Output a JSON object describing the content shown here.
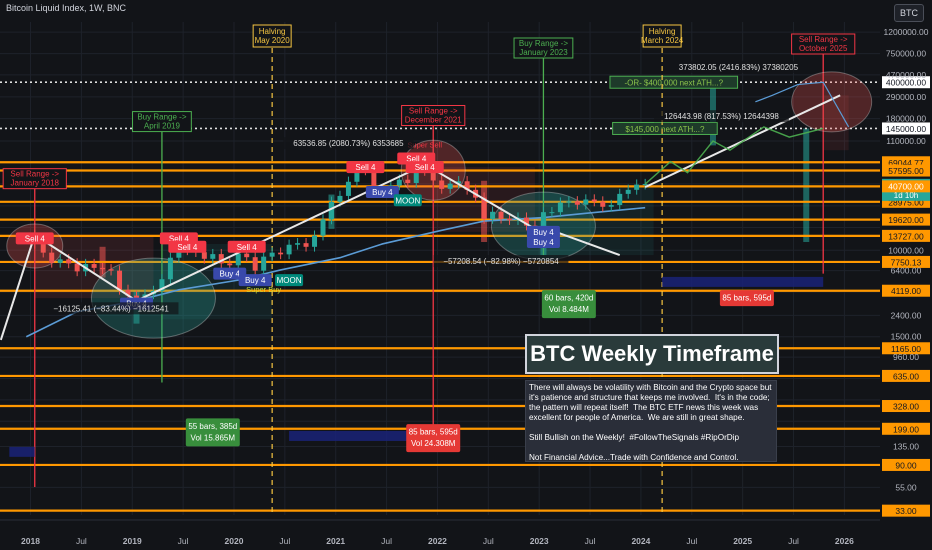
{
  "title": "Bitcoin Liquid Index, 1W, BNC",
  "symbol_button": "BTC",
  "headline": "BTC Weekly Timeframe",
  "note_text": "There will always be volatility with Bitcoin and the Crypto space but it's patience and structure that keeps me involved.  It's in the code; the pattern will repeat itself!  The BTC ETF news this week was excellent for people of America.  We are still in great shape.\n\nStill Bullish on the Weekly!  #FollowTheSignals #RipOrDip\n\nNot Financial Advice...Trade with Confidence and Control.",
  "colors": {
    "background": "#121418",
    "orange_line": "#ff9800",
    "bull_candle": "#26a69a",
    "bear_candle": "#ef5350",
    "ma_line": "#5b9bd5",
    "sell_label": "#f23645",
    "buy_label": "#3949ab",
    "green_label": "#4caf50"
  },
  "chart_data": {
    "type": "candlestick",
    "price_scale": "log",
    "x_ticks": [
      "2018",
      "Jul",
      "2019",
      "Jul",
      "2020",
      "Jul",
      "2021",
      "Jul",
      "2022",
      "Jul",
      "2023",
      "Jul",
      "2024",
      "Jul",
      "2025",
      "Jul",
      "2026"
    ],
    "y_ticks": [
      1200000,
      750000,
      470000,
      290000,
      180000,
      110000,
      69000,
      43000,
      26500,
      16500,
      10000,
      6400,
      4000,
      2400,
      1500,
      960,
      600,
      375,
      235,
      135,
      55
    ],
    "y_tick_labels": [
      "1200000.00",
      "750000.00",
      "470000.00",
      "290000.00",
      "180000.00",
      "110000.00",
      "",
      "",
      "",
      "",
      "10000.00",
      "6400.00",
      "",
      "2400.00",
      "1500.00",
      "960.00",
      "",
      "",
      "",
      "135.00",
      "55.00"
    ],
    "horizontal_levels": [
      69044.77,
      57595.0,
      40700.0,
      28975.0,
      19620.0,
      13727.0,
      7750.13,
      4119.0,
      1165.0,
      635.0,
      328.0,
      199.0,
      90.0,
      33.0
    ],
    "highlighted_levels": [
      {
        "value": 400000.0,
        "label": "400000.00",
        "annotation": "-OR- $400,000 next ATH...?"
      },
      {
        "value": 145000.0,
        "label": "145000.00",
        "annotation": "$145,000 next ATH...?"
      }
    ],
    "price_axis_badges": [
      {
        "text": "42802.02",
        "sub": "1d 10h",
        "color": "#26a69a"
      },
      {
        "text": "40700.00",
        "color": "#ff9800"
      }
    ],
    "weekly_closes": [
      {
        "date": "2017-12",
        "close": 14000
      },
      {
        "date": "2018-01",
        "close": 11500
      },
      {
        "date": "2018-02",
        "close": 9500
      },
      {
        "date": "2018-03",
        "close": 7600
      },
      {
        "date": "2018-04",
        "close": 8200
      },
      {
        "date": "2018-05",
        "close": 7500
      },
      {
        "date": "2018-06",
        "close": 6300
      },
      {
        "date": "2018-07",
        "close": 7400
      },
      {
        "date": "2018-08",
        "close": 6800
      },
      {
        "date": "2018-09",
        "close": 6600
      },
      {
        "date": "2018-10",
        "close": 6400
      },
      {
        "date": "2018-11",
        "close": 4200
      },
      {
        "date": "2018-12",
        "close": 3700
      },
      {
        "date": "2019-01",
        "close": 3500
      },
      {
        "date": "2019-02",
        "close": 3800
      },
      {
        "date": "2019-03",
        "close": 4100
      },
      {
        "date": "2019-04",
        "close": 5300
      },
      {
        "date": "2019-05",
        "close": 8500
      },
      {
        "date": "2019-06",
        "close": 11000
      },
      {
        "date": "2019-07",
        "close": 10000
      },
      {
        "date": "2019-08",
        "close": 9600
      },
      {
        "date": "2019-09",
        "close": 8300
      },
      {
        "date": "2019-10",
        "close": 9200
      },
      {
        "date": "2019-11",
        "close": 7500
      },
      {
        "date": "2019-12",
        "close": 7200
      },
      {
        "date": "2020-01",
        "close": 9300
      },
      {
        "date": "2020-02",
        "close": 8600
      },
      {
        "date": "2020-03",
        "close": 6400
      },
      {
        "date": "2020-04",
        "close": 8700
      },
      {
        "date": "2020-05",
        "close": 9500
      },
      {
        "date": "2020-06",
        "close": 9150
      },
      {
        "date": "2020-07",
        "close": 11300
      },
      {
        "date": "2020-08",
        "close": 11700
      },
      {
        "date": "2020-09",
        "close": 10800
      },
      {
        "date": "2020-10",
        "close": 13800
      },
      {
        "date": "2020-11",
        "close": 19700
      },
      {
        "date": "2020-12",
        "close": 29000
      },
      {
        "date": "2021-01",
        "close": 33000
      },
      {
        "date": "2021-02",
        "close": 45000
      },
      {
        "date": "2021-03",
        "close": 58800
      },
      {
        "date": "2021-04",
        "close": 57700
      },
      {
        "date": "2021-05",
        "close": 37300
      },
      {
        "date": "2021-06",
        "close": 35000
      },
      {
        "date": "2021-07",
        "close": 41500
      },
      {
        "date": "2021-08",
        "close": 47100
      },
      {
        "date": "2021-09",
        "close": 43800
      },
      {
        "date": "2021-10",
        "close": 61300
      },
      {
        "date": "2021-11",
        "close": 57000
      },
      {
        "date": "2021-12",
        "close": 46300
      },
      {
        "date": "2022-01",
        "close": 38500
      },
      {
        "date": "2022-02",
        "close": 43200
      },
      {
        "date": "2022-03",
        "close": 45500
      },
      {
        "date": "2022-04",
        "close": 37700
      },
      {
        "date": "2022-05",
        "close": 31800
      },
      {
        "date": "2022-06",
        "close": 19900
      },
      {
        "date": "2022-07",
        "close": 23300
      },
      {
        "date": "2022-08",
        "close": 20000
      },
      {
        "date": "2022-09",
        "close": 19400
      },
      {
        "date": "2022-10",
        "close": 20500
      },
      {
        "date": "2022-11",
        "close": 17200
      },
      {
        "date": "2022-12",
        "close": 16500
      },
      {
        "date": "2023-01",
        "close": 23100
      },
      {
        "date": "2023-02",
        "close": 23100
      },
      {
        "date": "2023-03",
        "close": 28500
      },
      {
        "date": "2023-04",
        "close": 29300
      },
      {
        "date": "2023-05",
        "close": 27200
      },
      {
        "date": "2023-06",
        "close": 30500
      },
      {
        "date": "2023-07",
        "close": 29200
      },
      {
        "date": "2023-08",
        "close": 26000
      },
      {
        "date": "2023-09",
        "close": 27000
      },
      {
        "date": "2023-10",
        "close": 34500
      },
      {
        "date": "2023-11",
        "close": 37700
      },
      {
        "date": "2023-12",
        "close": 42300
      },
      {
        "date": "2024-01",
        "close": 42802
      }
    ],
    "projection_path": [
      {
        "date": "2024-01",
        "close": 42802
      },
      {
        "date": "2024-04",
        "close": 70000
      },
      {
        "date": "2024-06",
        "close": 55000
      },
      {
        "date": "2024-09",
        "close": 110000
      },
      {
        "date": "2024-11",
        "close": 90000
      },
      {
        "date": "2025-03",
        "close": 150000
      },
      {
        "date": "2025-06",
        "close": 120000
      },
      {
        "date": "2025-10",
        "close": 145000
      }
    ],
    "projection_path_high": [
      {
        "date": "2025-02",
        "close": 260000
      },
      {
        "date": "2025-04",
        "close": 300000
      },
      {
        "date": "2025-07",
        "close": 380000
      },
      {
        "date": "2025-10",
        "close": 400000
      },
      {
        "date": "2026-01",
        "close": 150000
      }
    ],
    "moving_average": [
      {
        "date": "2017-12",
        "close": 1500
      },
      {
        "date": "2018-06",
        "close": 2600
      },
      {
        "date": "2019-01",
        "close": 3300
      },
      {
        "date": "2019-06",
        "close": 4200
      },
      {
        "date": "2020-01",
        "close": 5200
      },
      {
        "date": "2020-06",
        "close": 6500
      },
      {
        "date": "2021-01",
        "close": 8500
      },
      {
        "date": "2021-06",
        "close": 11500
      },
      {
        "date": "2022-01",
        "close": 15500
      },
      {
        "date": "2022-06",
        "close": 19000
      },
      {
        "date": "2023-01",
        "close": 20500
      },
      {
        "date": "2023-06",
        "close": 22500
      },
      {
        "date": "2024-01",
        "close": 25500
      }
    ],
    "halvings": [
      {
        "date": "2020-05",
        "label": "Halving\nMay 2020"
      },
      {
        "date": "2024-03",
        "label": "Halving\nMarch 2024"
      }
    ],
    "range_markers": [
      {
        "date": "2018-01",
        "label": "Sell Range ->\nJanuary 2018",
        "kind": "sell"
      },
      {
        "date": "2019-04",
        "label": "Buy Range ->\nApril 2019",
        "kind": "buy"
      },
      {
        "date": "2021-12",
        "label": "Sell Range ->\nDecember 2021",
        "kind": "sell"
      },
      {
        "date": "2023-01",
        "label": "Buy Range ->\nJanuary 2023",
        "kind": "buy"
      },
      {
        "date": "2025-10",
        "label": "Sell Range ->\nOctober 2025",
        "kind": "sell"
      }
    ],
    "signal_labels": [
      {
        "text": "Sell 4",
        "kind": "sell",
        "date": "2018-01",
        "price": 13000
      },
      {
        "text": "Sell 4",
        "kind": "sell",
        "date": "2019-06",
        "price": 13000
      },
      {
        "text": "Sell 4",
        "kind": "sell",
        "date": "2019-07",
        "price": 10800
      },
      {
        "text": "Sell 4",
        "kind": "sell",
        "date": "2020-02",
        "price": 10800
      },
      {
        "text": "Sell 4",
        "kind": "sell",
        "date": "2021-04",
        "price": 62000
      },
      {
        "text": "Super Sell",
        "kind": "sell-text",
        "date": "2021-11",
        "price": 95000
      },
      {
        "text": "Sell 4",
        "kind": "sell",
        "date": "2021-10",
        "price": 75000
      },
      {
        "text": "Sell 4",
        "kind": "sell",
        "date": "2021-11",
        "price": 62000
      },
      {
        "text": "Buy 4",
        "kind": "buy",
        "date": "2019-01",
        "price": 3100
      },
      {
        "text": "Buy 4",
        "kind": "buy",
        "date": "2019-12",
        "price": 6000
      },
      {
        "text": "Buy 4",
        "kind": "buy",
        "date": "2020-03",
        "price": 5200
      },
      {
        "text": "MOON",
        "kind": "moon",
        "date": "2020-07",
        "price": 5200
      },
      {
        "text": "Super Buy",
        "kind": "buy-text",
        "date": "2020-04",
        "price": 4000
      },
      {
        "text": "Buy 4",
        "kind": "buy",
        "date": "2021-06",
        "price": 36000
      },
      {
        "text": "MOON",
        "kind": "moon",
        "date": "2021-09",
        "price": 30000
      },
      {
        "text": "Buy 4",
        "kind": "buy",
        "date": "2023-01",
        "price": 15000
      },
      {
        "text": "Buy 4",
        "kind": "buy-small",
        "date": "2023-01",
        "price": 12000
      }
    ],
    "measurements": [
      {
        "text": "63536.85 (2080.73%) 6353685",
        "date": "2021-02",
        "price": 105000
      },
      {
        "text": "−16125.41 (−83.44%) −1612541",
        "date": "2018-10",
        "price": 2800
      },
      {
        "text": "−57208.54 (−82.98%) −5720854",
        "date": "2022-08",
        "price": 7900
      },
      {
        "text": "126443.98 (817.53%) 12644398",
        "date": "2024-10",
        "price": 190000
      },
      {
        "text": "373802.05 (2416.83%) 37380205",
        "date": "2024-12",
        "price": 560000
      }
    ],
    "bar_boxes": [
      {
        "title": "55 bars, 385d",
        "sub": "Vol 15.865M",
        "color": "#388e3c",
        "date": "2019-10",
        "price": 210
      },
      {
        "title": "85 bars, 595d",
        "sub": "Vol 24.308M",
        "color": "#e53935",
        "date": "2021-12",
        "price": 185
      },
      {
        "title": "60 bars, 420d",
        "sub": "Vol 8.484M",
        "color": "#388e3c",
        "date": "2023-04",
        "price": 3500
      },
      {
        "title": "85 bars, 595d",
        "sub": "",
        "color": "#e53935",
        "date": "2025-01",
        "price": 3500
      }
    ]
  }
}
